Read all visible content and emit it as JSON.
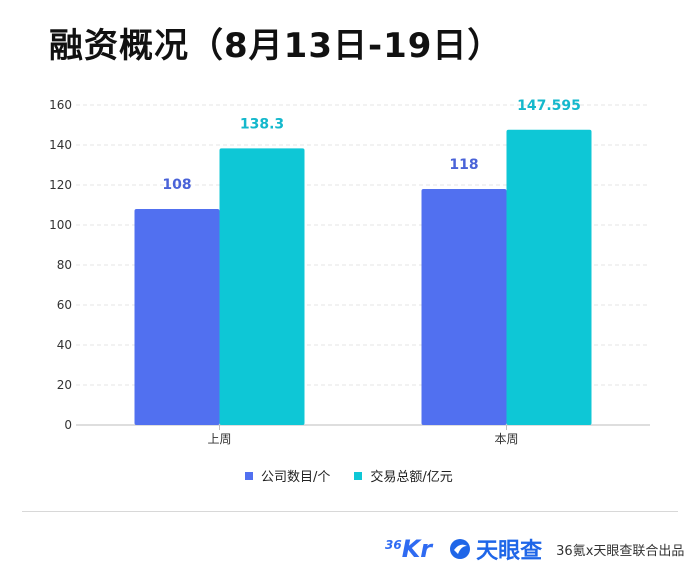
{
  "title": "融资概况（8月13日-19日）",
  "chart_data": {
    "type": "bar",
    "categories": [
      "上周",
      "本周"
    ],
    "series": [
      {
        "name": "公司数目/个",
        "values": [
          108,
          118
        ],
        "labels": [
          "108",
          "118"
        ],
        "color": "#5170f0",
        "label_color": "#4a63d8"
      },
      {
        "name": "交易总额/亿元",
        "values": [
          138.3,
          147.595
        ],
        "labels": [
          "138.3",
          "147.595"
        ],
        "color": "#0ec7d6",
        "label_color": "#14b8cc"
      }
    ],
    "ylim": [
      0,
      160
    ],
    "yticks": [
      0,
      20,
      40,
      60,
      80,
      100,
      120,
      140,
      160
    ],
    "ytick_labels": [
      "0",
      "20",
      "40",
      "60",
      "80",
      "100",
      "120",
      "140",
      "160"
    ],
    "xlabel": "",
    "ylabel": "",
    "legend_position": "bottom-center",
    "grid": true
  },
  "footer": {
    "logo_36_num": "36",
    "logo_36_kr": "Kr",
    "tyc_text": "天眼查",
    "credit": "36氪x天眼查联合出品"
  }
}
